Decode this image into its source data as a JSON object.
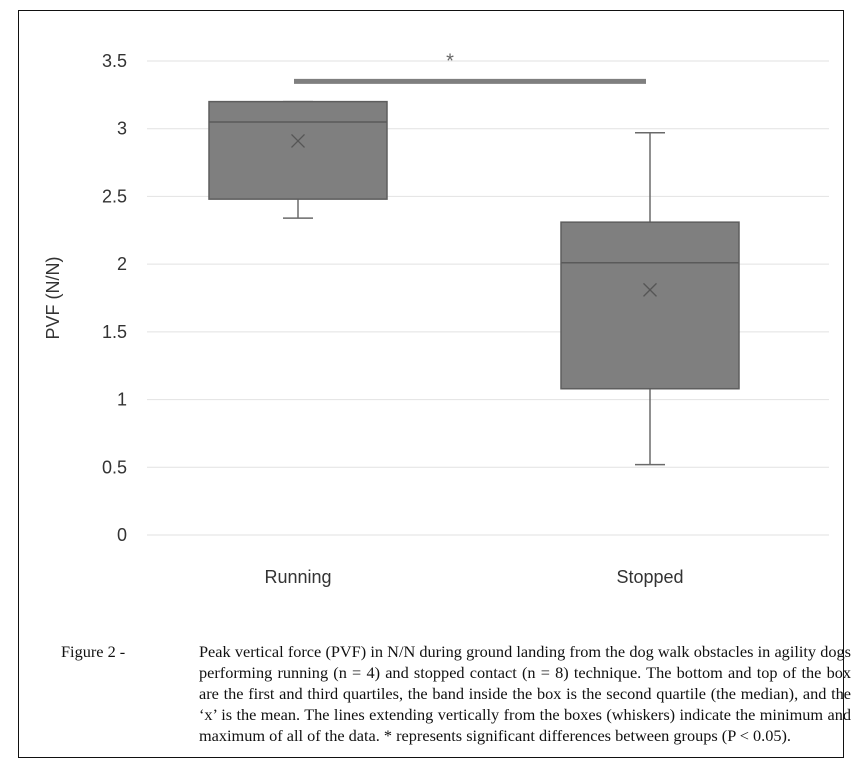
{
  "chart_data": {
    "type": "box",
    "categories": [
      "Running",
      "Stopped"
    ],
    "ylabel": "PVF (N/N)",
    "ylim": [
      0,
      3.5
    ],
    "yticks": [
      "0",
      "0.5",
      "1",
      "1.5",
      "2",
      "2.5",
      "3",
      "3.5"
    ],
    "ytick_values": [
      0,
      0.5,
      1,
      1.5,
      2,
      2.5,
      3,
      3.5
    ],
    "grid": true,
    "boxes": [
      {
        "name": "Running",
        "min": 2.34,
        "q1": 2.48,
        "median": 3.05,
        "q3": 3.2,
        "max": 3.2,
        "mean": 2.91
      },
      {
        "name": "Stopped",
        "min": 0.52,
        "q1": 1.08,
        "median": 2.01,
        "q3": 2.31,
        "max": 2.97,
        "mean": 1.81
      }
    ],
    "significance": {
      "symbol": "*",
      "between": [
        "Running",
        "Stopped"
      ],
      "y": 3.35
    },
    "colors": {
      "box": "#7f7f7f",
      "box_edge": "#6a6a6a",
      "grid": "#e2e2e2",
      "bar": "#7f7f7f"
    }
  },
  "caption": {
    "prefix": "Figure 2 - ",
    "text": "Peak vertical force (PVF) in N/N during ground landing from the dog walk obstacles in agility dogs performing running (n = 4) and stopped contact (n = 8) technique. The bottom and top of the box are the first and third quartiles, the band inside the box is the second quartile (the median), and the ‘x’ is the mean. The lines extending vertically from the boxes (whiskers) indicate the minimum and maximum of all of the data. * represents significant differences between groups (P < 0.05)."
  }
}
